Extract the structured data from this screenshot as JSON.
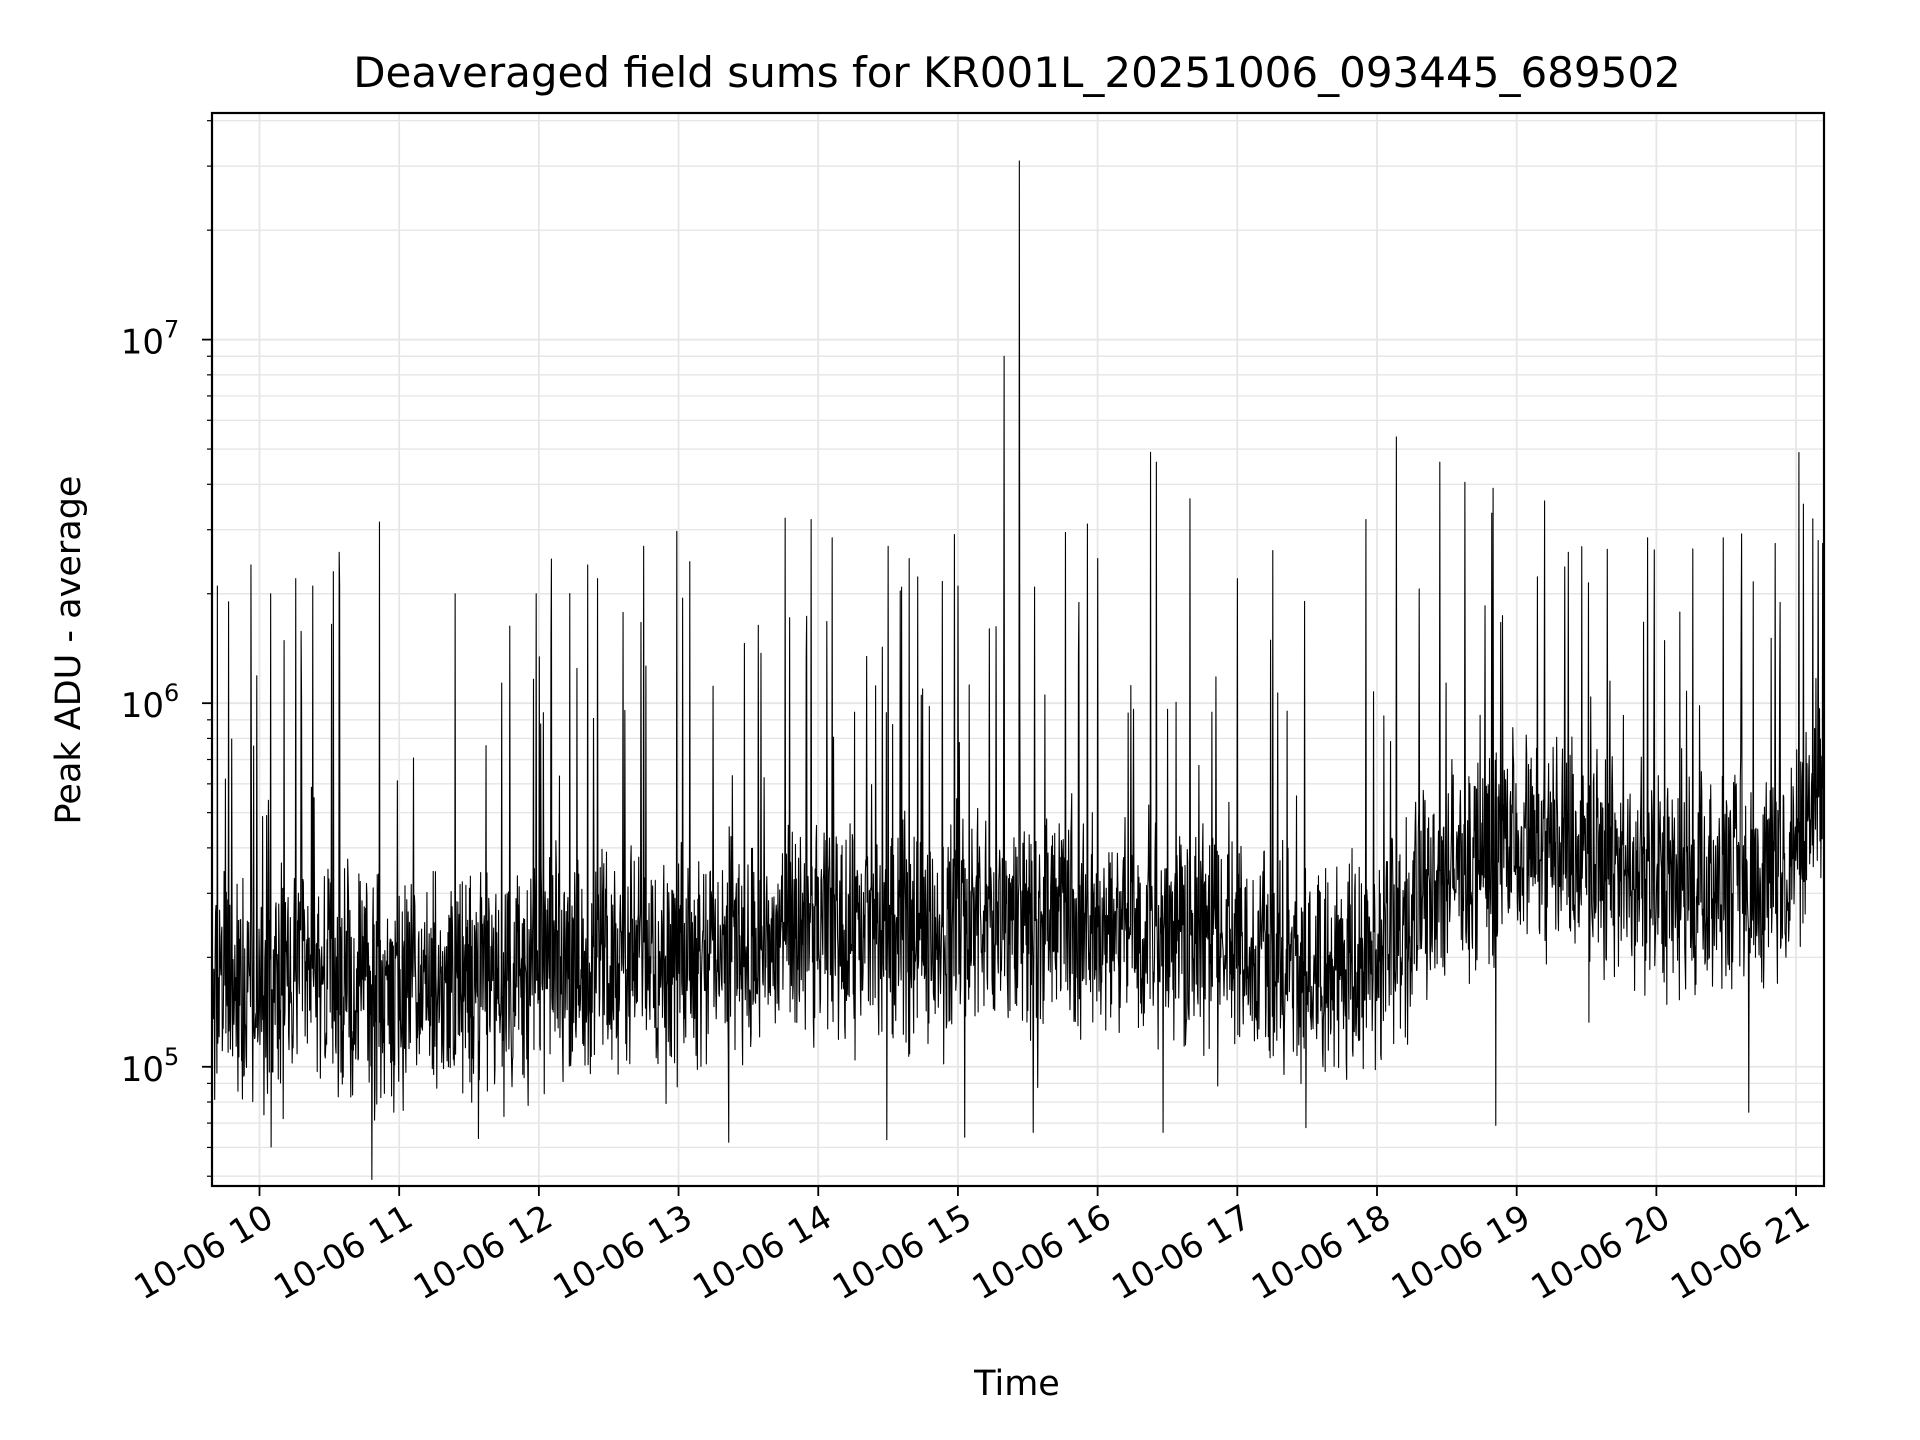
{
  "chart_data": {
    "type": "line",
    "title": "Deaveraged field sums for KR001L_20251006_093445_689502",
    "xlabel": "Time",
    "ylabel": "Peak ADU - average",
    "yscale": "log",
    "ylim": [
      47000,
      42000000
    ],
    "xlim_hours": [
      9.66,
      21.2
    ],
    "grid": true,
    "line_color": "#000000",
    "grid_color": "#e6e6e6",
    "x_ticks": [
      {
        "hour": 10,
        "label": "10-06 10"
      },
      {
        "hour": 11,
        "label": "10-06 11"
      },
      {
        "hour": 12,
        "label": "10-06 12"
      },
      {
        "hour": 13,
        "label": "10-06 13"
      },
      {
        "hour": 14,
        "label": "10-06 14"
      },
      {
        "hour": 15,
        "label": "10-06 15"
      },
      {
        "hour": 16,
        "label": "10-06 16"
      },
      {
        "hour": 17,
        "label": "10-06 17"
      },
      {
        "hour": 18,
        "label": "10-06 18"
      },
      {
        "hour": 19,
        "label": "10-06 19"
      },
      {
        "hour": 20,
        "label": "10-06 20"
      },
      {
        "hour": 21,
        "label": "10-06 21"
      }
    ],
    "y_ticks": [
      {
        "value": 100000,
        "base": "10",
        "exp": "5"
      },
      {
        "value": 1000000,
        "base": "10",
        "exp": "6"
      },
      {
        "value": 10000000,
        "base": "10",
        "exp": "7"
      }
    ],
    "series": [
      {
        "name": "deaveraged field sum",
        "baseline_profile": {
          "hours": [
            9.66,
            10.0,
            10.5,
            11.0,
            11.5,
            12.0,
            12.5,
            13.0,
            13.5,
            14.0,
            14.5,
            15.0,
            15.5,
            16.0,
            16.5,
            17.0,
            17.5,
            18.0,
            18.5,
            19.0,
            19.5,
            20.0,
            20.5,
            21.0,
            21.2
          ],
          "values": [
            160000,
            170000,
            175000,
            160000,
            170000,
            190000,
            200000,
            210000,
            220000,
            230000,
            230000,
            240000,
            260000,
            240000,
            230000,
            220000,
            190000,
            200000,
            330000,
            420000,
            380000,
            320000,
            290000,
            380000,
            700000
          ]
        },
        "peaks": [
          {
            "hour": 9.7,
            "value": 2100000
          },
          {
            "hour": 9.78,
            "value": 1900000
          },
          {
            "hour": 9.94,
            "value": 2400000
          },
          {
            "hour": 10.08,
            "value": 2000000
          },
          {
            "hour": 10.26,
            "value": 2200000
          },
          {
            "hour": 10.38,
            "value": 2100000
          },
          {
            "hour": 10.53,
            "value": 2300000
          },
          {
            "hour": 10.57,
            "value": 2600000
          },
          {
            "hour": 10.86,
            "value": 3150000
          },
          {
            "hour": 11.4,
            "value": 2000000
          },
          {
            "hour": 11.75,
            "value": 1800000
          },
          {
            "hour": 11.98,
            "value": 2000000
          },
          {
            "hour": 12.35,
            "value": 2400000
          },
          {
            "hour": 12.42,
            "value": 2200000
          },
          {
            "hour": 12.75,
            "value": 2700000
          },
          {
            "hour": 13.08,
            "value": 2450000
          },
          {
            "hour": 13.95,
            "value": 3200000
          },
          {
            "hour": 14.1,
            "value": 2850000
          },
          {
            "hour": 14.5,
            "value": 2700000
          },
          {
            "hour": 14.65,
            "value": 2500000
          },
          {
            "hour": 15.0,
            "value": 2100000
          },
          {
            "hour": 15.33,
            "value": 9000000
          },
          {
            "hour": 15.44,
            "value": 31000000
          },
          {
            "hour": 15.77,
            "value": 2950000
          },
          {
            "hour": 16.0,
            "value": 2500000
          },
          {
            "hour": 16.38,
            "value": 4900000
          },
          {
            "hour": 16.42,
            "value": 4600000
          },
          {
            "hour": 16.66,
            "value": 3650000
          },
          {
            "hour": 17.0,
            "value": 2200000
          },
          {
            "hour": 17.92,
            "value": 3200000
          },
          {
            "hour": 18.14,
            "value": 5400000
          },
          {
            "hour": 18.45,
            "value": 4600000
          },
          {
            "hour": 18.63,
            "value": 4050000
          },
          {
            "hour": 18.83,
            "value": 3900000
          },
          {
            "hour": 19.2,
            "value": 3600000
          },
          {
            "hour": 19.37,
            "value": 2600000
          },
          {
            "hour": 19.65,
            "value": 2650000
          },
          {
            "hour": 20.48,
            "value": 2850000
          },
          {
            "hour": 20.85,
            "value": 2750000
          },
          {
            "hour": 21.19,
            "value": 2750000
          }
        ],
        "dips": [
          {
            "hour": 10.17,
            "value": 72000
          },
          {
            "hour": 10.96,
            "value": 75000
          },
          {
            "hour": 11.75,
            "value": 73000
          },
          {
            "hour": 13.36,
            "value": 62000
          },
          {
            "hour": 14.49,
            "value": 63000
          },
          {
            "hour": 15.05,
            "value": 64000
          },
          {
            "hour": 15.54,
            "value": 66000
          },
          {
            "hour": 16.47,
            "value": 66000
          },
          {
            "hour": 17.49,
            "value": 68000
          },
          {
            "hour": 18.85,
            "value": 69000
          },
          {
            "hour": 20.66,
            "value": 75000
          }
        ]
      }
    ]
  }
}
